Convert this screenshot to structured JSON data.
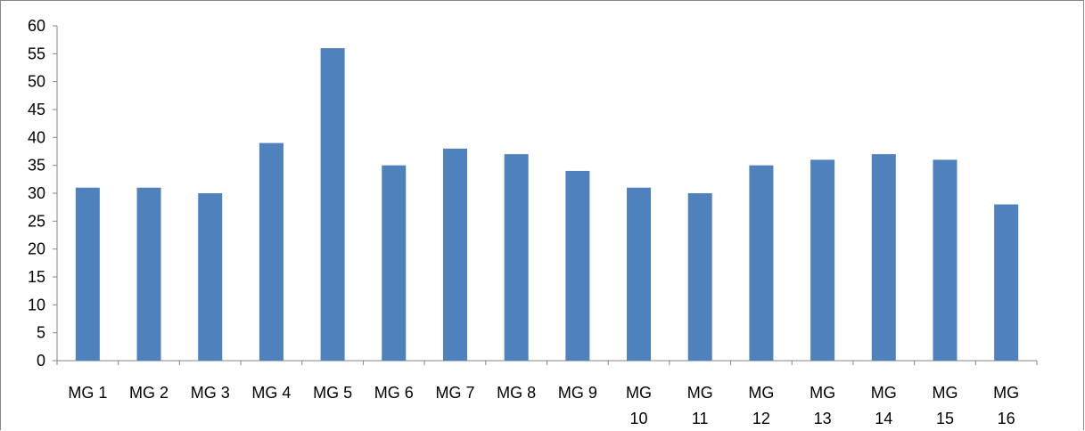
{
  "chart_data": {
    "type": "bar",
    "title": "",
    "xlabel": "",
    "ylabel": "",
    "categories": [
      [
        "MG 1"
      ],
      [
        "MG 2"
      ],
      [
        "MG 3"
      ],
      [
        "MG 4"
      ],
      [
        "MG 5"
      ],
      [
        "MG 6"
      ],
      [
        "MG 7"
      ],
      [
        "MG 8"
      ],
      [
        "MG 9"
      ],
      [
        "MG",
        "10"
      ],
      [
        "MG",
        "11"
      ],
      [
        "MG",
        "12"
      ],
      [
        "MG",
        "13"
      ],
      [
        "MG",
        "14"
      ],
      [
        "MG",
        "15"
      ],
      [
        "MG",
        "16"
      ]
    ],
    "values": [
      31,
      31,
      30,
      39,
      56,
      35,
      38,
      37,
      34,
      31,
      30,
      35,
      36,
      37,
      36,
      28
    ],
    "ylim": [
      0,
      60
    ],
    "yticks": [
      "0",
      "5",
      "10",
      "15",
      "20",
      "25",
      "30",
      "35",
      "40",
      "45",
      "50",
      "55",
      "60"
    ],
    "grid": false,
    "legend": "none",
    "bar_color": "#4f81bd",
    "axis_color": "#868686"
  }
}
